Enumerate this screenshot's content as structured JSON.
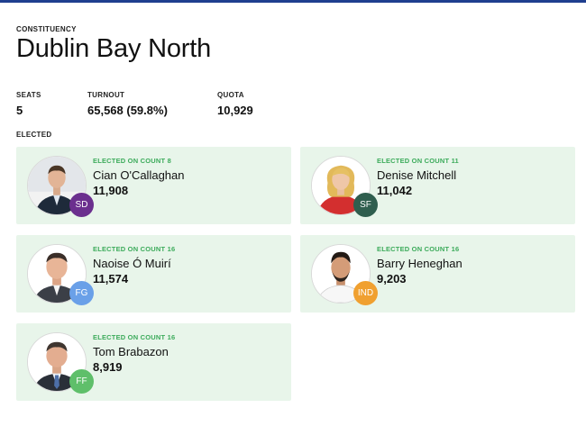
{
  "header": {
    "eyebrow": "CONSTITUENCY",
    "title": "Dublin Bay North"
  },
  "stats": {
    "seats_label": "SEATS",
    "seats_value": "5",
    "turnout_label": "TURNOUT",
    "turnout_value": "65,568 (59.8%)",
    "quota_label": "QUOTA",
    "quota_value": "10,929"
  },
  "elected_label": "ELECTED",
  "candidates": [
    {
      "count": "ELECTED ON COUNT 8",
      "name": "Cian O'Callaghan",
      "votes": "11,908",
      "party": "SD",
      "party_color": "#6b2f8e"
    },
    {
      "count": "ELECTED ON COUNT 11",
      "name": "Denise Mitchell",
      "votes": "11,042",
      "party": "SF",
      "party_color": "#2f5e4e"
    },
    {
      "count": "ELECTED ON COUNT 16",
      "name": "Naoise Ó Muirí",
      "votes": "11,574",
      "party": "FG",
      "party_color": "#6aa0e8"
    },
    {
      "count": "ELECTED ON COUNT 16",
      "name": "Barry Heneghan",
      "votes": "9,203",
      "party": "IND",
      "party_color": "#f0a030"
    },
    {
      "count": "ELECTED ON COUNT 16",
      "name": "Tom Brabazon",
      "votes": "8,919",
      "party": "FF",
      "party_color": "#5fbf6a"
    }
  ],
  "colors": {
    "accent_bar": "#1f3f8f",
    "card_bg": "#e8f5ea",
    "elected_text": "#3cab5b"
  }
}
